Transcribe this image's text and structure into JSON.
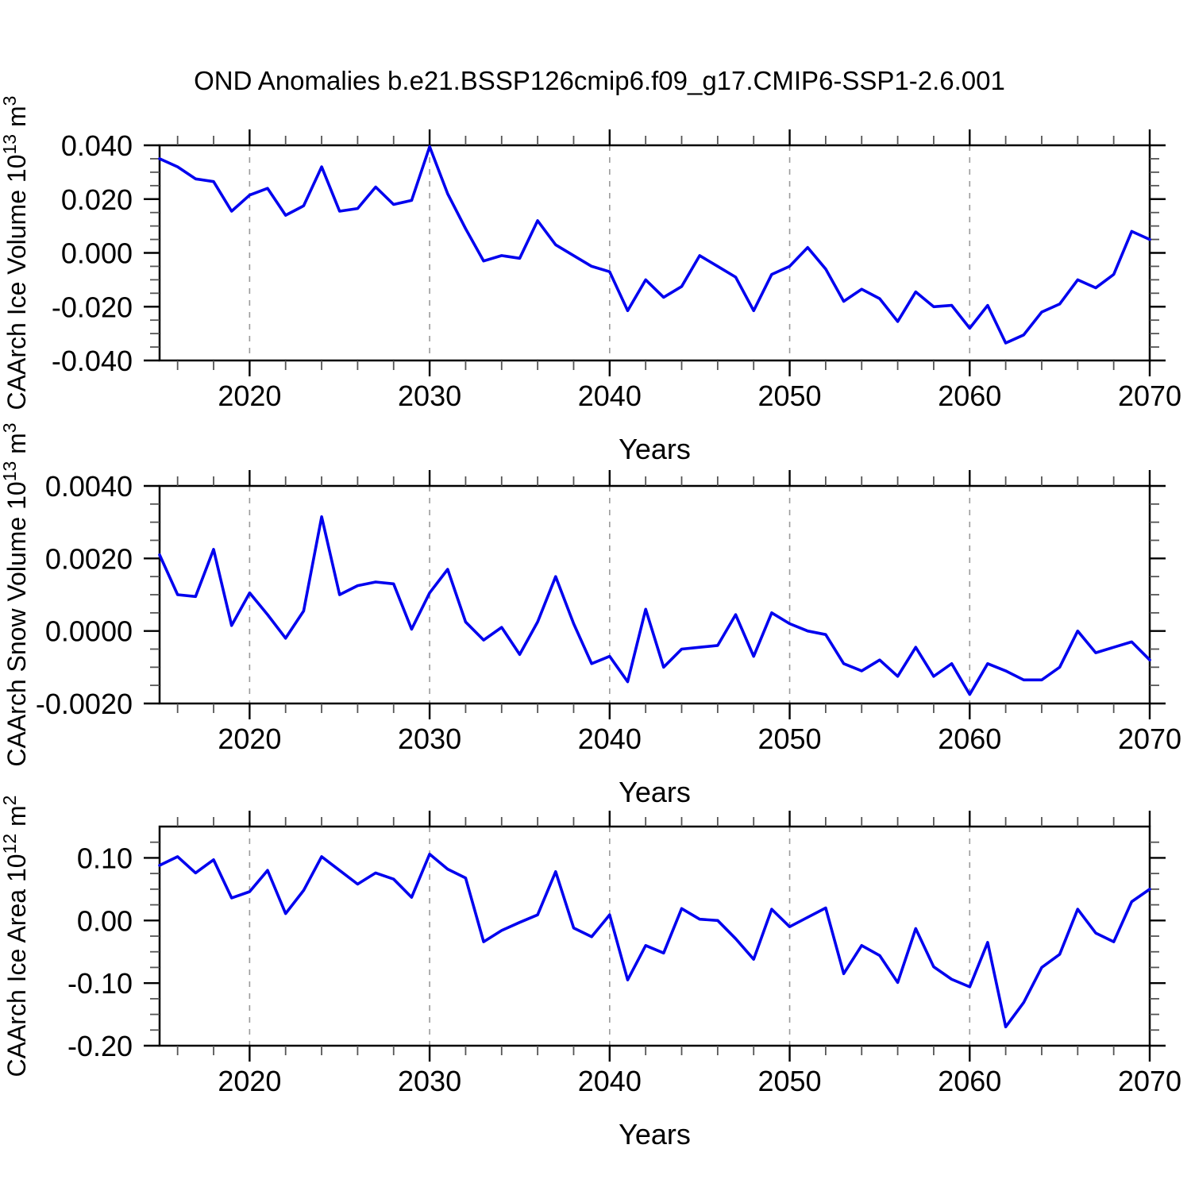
{
  "title": "OND Anomalies b.e21.BSSP126cmip6.f09_g17.CMIP6-SSP1-2.6.001",
  "line_color": "#0000EE",
  "grid_color": "#9a9a9a",
  "frame_color": "#000000",
  "minor_tick_color": "#555555",
  "x_axis": {
    "label": "Years",
    "range": [
      2015,
      2070
    ],
    "major_ticks": [
      2020,
      2030,
      2040,
      2050,
      2060,
      2070
    ],
    "minor_step": 2,
    "gridlines": [
      2020,
      2030,
      2040,
      2050,
      2060
    ]
  },
  "years": [
    2015,
    2016,
    2017,
    2018,
    2019,
    2020,
    2021,
    2022,
    2023,
    2024,
    2025,
    2026,
    2027,
    2028,
    2029,
    2030,
    2031,
    2032,
    2033,
    2034,
    2035,
    2036,
    2037,
    2038,
    2039,
    2040,
    2041,
    2042,
    2043,
    2044,
    2045,
    2046,
    2047,
    2048,
    2049,
    2050,
    2051,
    2052,
    2053,
    2054,
    2055,
    2056,
    2057,
    2058,
    2059,
    2060,
    2061,
    2062,
    2063,
    2064,
    2065,
    2066,
    2067,
    2068,
    2069,
    2070
  ],
  "chart_data": [
    {
      "type": "line",
      "name": "ice-volume",
      "ylabel_parts": [
        [
          "CAArch Ice Volume 10",
          false
        ],
        [
          "13",
          true
        ],
        [
          " m",
          false
        ],
        [
          "3",
          true
        ]
      ],
      "ylim": [
        -0.04,
        0.04
      ],
      "ytick_values": [
        0.04,
        0.02,
        0.0,
        -0.02,
        -0.04
      ],
      "ytick_labels": [
        "0.040",
        "0.020",
        "0.000",
        "-0.020",
        "-0.040"
      ],
      "y_minor_step": 0.005,
      "values": [
        0.035,
        0.032,
        0.0275,
        0.0265,
        0.0155,
        0.0215,
        0.024,
        0.014,
        0.0175,
        0.032,
        0.0155,
        0.0165,
        0.0245,
        0.018,
        0.0195,
        0.0395,
        0.022,
        0.009,
        -0.003,
        -0.001,
        -0.002,
        0.012,
        0.003,
        -0.001,
        -0.005,
        -0.007,
        -0.0215,
        -0.01,
        -0.0165,
        -0.0125,
        -0.001,
        -0.005,
        -0.009,
        -0.0215,
        -0.008,
        -0.005,
        0.002,
        -0.006,
        -0.018,
        -0.0135,
        -0.017,
        -0.0255,
        -0.0145,
        -0.02,
        -0.0195,
        -0.028,
        -0.0195,
        -0.0335,
        -0.0305,
        -0.022,
        -0.019,
        -0.01,
        -0.013,
        -0.008,
        0.008,
        0.005
      ]
    },
    {
      "type": "line",
      "name": "snow-volume",
      "ylabel_parts": [
        [
          "CAArch Snow Volume 10",
          false
        ],
        [
          "13",
          true
        ],
        [
          " m",
          false
        ],
        [
          "3",
          true
        ]
      ],
      "ylim": [
        -0.002,
        0.004
      ],
      "ytick_values": [
        0.004,
        0.002,
        0.0,
        -0.002
      ],
      "ytick_labels": [
        "0.0040",
        "0.0020",
        "0.0000",
        "-0.0020"
      ],
      "y_minor_step": 0.0005,
      "values": [
        0.0021,
        0.001,
        0.00095,
        0.00225,
        0.00015,
        0.00105,
        0.00045,
        -0.0002,
        0.00055,
        0.00315,
        0.001,
        0.00125,
        0.00135,
        0.0013,
        5e-05,
        0.00105,
        0.0017,
        0.00025,
        -0.00025,
        0.0001,
        -0.00065,
        0.00025,
        0.0015,
        0.0002,
        -0.0009,
        -0.0007,
        -0.0014,
        0.0006,
        -0.001,
        -0.0005,
        -0.00045,
        -0.0004,
        0.00045,
        -0.0007,
        0.0005,
        0.0002,
        0.0,
        -0.0001,
        -0.0009,
        -0.0011,
        -0.0008,
        -0.00125,
        -0.00045,
        -0.00125,
        -0.0009,
        -0.00175,
        -0.0009,
        -0.0011,
        -0.00135,
        -0.00135,
        -0.001,
        0.0,
        -0.0006,
        -0.00045,
        -0.0003,
        -0.0008
      ]
    },
    {
      "type": "line",
      "name": "ice-area",
      "ylabel_parts": [
        [
          "CAArch Ice Area 10",
          false
        ],
        [
          "12",
          true
        ],
        [
          " m",
          false
        ],
        [
          "2",
          true
        ]
      ],
      "ylim": [
        -0.2,
        0.15
      ],
      "ytick_values": [
        0.1,
        0.0,
        -0.1,
        -0.2
      ],
      "ytick_labels": [
        "0.10",
        "0.00",
        "-0.10",
        "-0.20"
      ],
      "y_minor_step": 0.025,
      "values": [
        0.088,
        0.102,
        0.076,
        0.097,
        0.036,
        0.046,
        0.08,
        0.011,
        0.048,
        0.102,
        0.08,
        0.058,
        0.076,
        0.066,
        0.037,
        0.106,
        0.082,
        0.068,
        -0.034,
        -0.016,
        -0.003,
        0.009,
        0.078,
        -0.012,
        -0.026,
        0.009,
        -0.095,
        -0.04,
        -0.052,
        0.019,
        0.002,
        0.0,
        -0.029,
        -0.062,
        0.018,
        -0.01,
        0.005,
        0.02,
        -0.085,
        -0.04,
        -0.056,
        -0.099,
        -0.013,
        -0.074,
        -0.094,
        -0.106,
        -0.035,
        -0.17,
        -0.131,
        -0.075,
        -0.054,
        0.018,
        -0.02,
        -0.034,
        0.03,
        0.05
      ]
    }
  ]
}
